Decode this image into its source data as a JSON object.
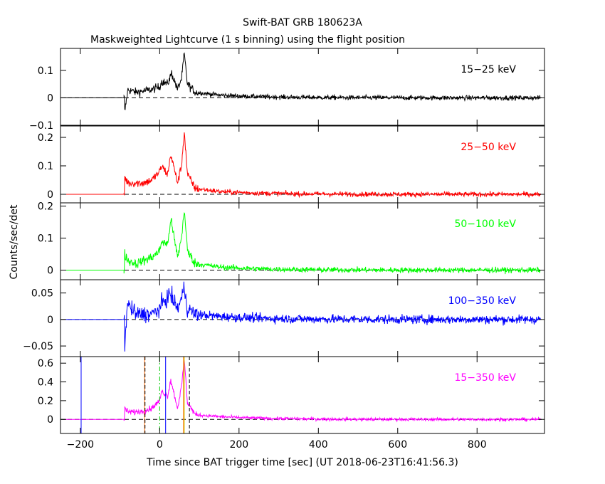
{
  "chart_data": {
    "type": "line",
    "title": "Swift-BAT GRB 180623A",
    "subtitle": "Maskweighted Lightcurve (1 s binning) using the flight position",
    "xlabel": "Time since BAT trigger time [sec] (UT 2018-06-23T16:41:56.3)",
    "ylabel": "Counts/sec/det",
    "xlim": [
      -250,
      970
    ],
    "x_ticks": [
      -200,
      0,
      200,
      400,
      600,
      800
    ],
    "x_tick_labels": [
      "−200",
      "0",
      "200",
      "400",
      "600",
      "800"
    ],
    "data_start": -240,
    "trigger_start": -90,
    "data_end": 960,
    "panels": [
      {
        "band": "15−25 keV",
        "color": "#000000",
        "ylim": [
          -0.1,
          0.18
        ],
        "ticks": [
          -0.1,
          0,
          0.1
        ],
        "tick_labels": [
          "−0.1",
          "0",
          "0.1"
        ],
        "noise": 0.006,
        "peaks": [
          [
            -88,
            -0.05
          ],
          [
            -80,
            0.03
          ],
          [
            -60,
            0.02
          ],
          [
            -40,
            0.025
          ],
          [
            -20,
            0.03
          ],
          [
            0,
            0.04
          ],
          [
            5,
            0.06
          ],
          [
            20,
            0.05
          ],
          [
            30,
            0.09
          ],
          [
            45,
            0.03
          ],
          [
            55,
            0.07
          ],
          [
            62,
            0.16
          ],
          [
            70,
            0.05
          ],
          [
            90,
            0.02
          ],
          [
            150,
            0.01
          ]
        ]
      },
      {
        "band": "25−50 keV",
        "color": "#ff0000",
        "ylim": [
          -0.03,
          0.24
        ],
        "ticks": [
          0,
          0.1,
          0.2
        ],
        "tick_labels": [
          "0",
          "0.1",
          "0.2"
        ],
        "noise": 0.006,
        "peaks": [
          [
            -88,
            0.06
          ],
          [
            -80,
            0.04
          ],
          [
            -60,
            0.04
          ],
          [
            -40,
            0.04
          ],
          [
            -20,
            0.05
          ],
          [
            0,
            0.08
          ],
          [
            5,
            0.1
          ],
          [
            20,
            0.07
          ],
          [
            28,
            0.14
          ],
          [
            45,
            0.04
          ],
          [
            55,
            0.1
          ],
          [
            62,
            0.22
          ],
          [
            70,
            0.07
          ],
          [
            90,
            0.02
          ],
          [
            150,
            0.01
          ]
        ]
      },
      {
        "band": "50−100 keV",
        "color": "#00ff00",
        "ylim": [
          -0.03,
          0.21
        ],
        "ticks": [
          0,
          0.1,
          0.2
        ],
        "tick_labels": [
          "0",
          "0.1",
          "0.2"
        ],
        "noise": 0.006,
        "peaks": [
          [
            -88,
            0.05
          ],
          [
            -80,
            0.03
          ],
          [
            -60,
            0.02
          ],
          [
            -40,
            0.03
          ],
          [
            -20,
            0.04
          ],
          [
            0,
            0.06
          ],
          [
            5,
            0.09
          ],
          [
            20,
            0.08
          ],
          [
            28,
            0.16
          ],
          [
            45,
            0.04
          ],
          [
            55,
            0.1
          ],
          [
            62,
            0.19
          ],
          [
            70,
            0.06
          ],
          [
            90,
            0.02
          ],
          [
            150,
            0.01
          ]
        ]
      },
      {
        "band": "100−350 keV",
        "color": "#0000ff",
        "ylim": [
          -0.07,
          0.075
        ],
        "ticks": [
          -0.05,
          0,
          0.05
        ],
        "tick_labels": [
          "−0.05",
          "0",
          "0.05"
        ],
        "noise": 0.006,
        "peaks": [
          [
            -88,
            -0.06
          ],
          [
            -82,
            0.03
          ],
          [
            -60,
            0.01
          ],
          [
            -40,
            0.01
          ],
          [
            -20,
            0.01
          ],
          [
            0,
            0.02
          ],
          [
            5,
            0.03
          ],
          [
            20,
            0.04
          ],
          [
            25,
            0.05
          ],
          [
            45,
            0.02
          ],
          [
            55,
            0.04
          ],
          [
            62,
            0.06
          ],
          [
            70,
            0.02
          ],
          [
            90,
            0.01
          ]
        ]
      },
      {
        "band": "15−350 keV",
        "color": "#ff00ff",
        "ylim": [
          -0.15,
          0.67
        ],
        "ticks": [
          0,
          0.2,
          0.4,
          0.6
        ],
        "tick_labels": [
          "0",
          "0.2",
          "0.4",
          "0.6"
        ],
        "noise": 0.012,
        "peaks": [
          [
            -88,
            0.12
          ],
          [
            -80,
            0.08
          ],
          [
            -60,
            0.08
          ],
          [
            -40,
            0.09
          ],
          [
            -20,
            0.12
          ],
          [
            0,
            0.2
          ],
          [
            5,
            0.3
          ],
          [
            20,
            0.25
          ],
          [
            28,
            0.42
          ],
          [
            45,
            0.12
          ],
          [
            55,
            0.35
          ],
          [
            62,
            0.64
          ],
          [
            70,
            0.18
          ],
          [
            90,
            0.05
          ],
          [
            150,
            0.03
          ]
        ],
        "markers": [
          {
            "x": -198,
            "color": "#0000ff",
            "style": "solid"
          },
          {
            "x": -38,
            "color": "#ff6a00",
            "style": "solid"
          },
          {
            "x": -37,
            "color": "#000000",
            "style": "dashed"
          },
          {
            "x": 0,
            "color": "#00cc00",
            "style": "dashdot"
          },
          {
            "x": 15,
            "color": "#0000ff",
            "style": "solid"
          },
          {
            "x": 60,
            "color": "#ff6a00",
            "style": "solid"
          },
          {
            "x": 62,
            "color": "#cccc00",
            "style": "solid"
          },
          {
            "x": 75,
            "color": "#000000",
            "style": "dashed"
          }
        ]
      }
    ]
  }
}
